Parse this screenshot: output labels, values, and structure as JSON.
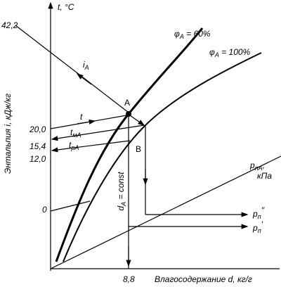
{
  "axes": {
    "y_label": "Энтальпия i, кДж/кг",
    "t_label": "t, °C",
    "x_label": "Влагосодержание d, кг/г"
  },
  "ticks": {
    "i_a": "42,2",
    "t": "20,0",
    "t_ma": "15,4",
    "t_pa": "12,0",
    "zero": "0",
    "d_a": "8,8"
  },
  "points": {
    "a": "A",
    "b": "B"
  },
  "lines": {
    "i_a": {
      "main": "i",
      "sub": "A"
    },
    "t": "t",
    "t_ma": {
      "main": "t",
      "sub": "мА"
    },
    "t_pa": {
      "main": "t",
      "sub": "рА"
    },
    "d_a": {
      "main": "d",
      "sub": "A",
      "rest": " = const"
    }
  },
  "curves": {
    "phi60": {
      "main": "φ",
      "sub": "A",
      "rest": " = 60%"
    },
    "phi100": {
      "main": "φ",
      "sub": "A",
      "rest": " = 100%"
    }
  },
  "pressure": {
    "p_pa": {
      "main": "p",
      "sub": "пА",
      "rest": ","
    },
    "unit": "кПа",
    "p2": {
      "main": "p",
      "sub": "п",
      "sup": "''"
    },
    "p1": {
      "main": "p",
      "sub": "п",
      "sup": "'"
    }
  }
}
